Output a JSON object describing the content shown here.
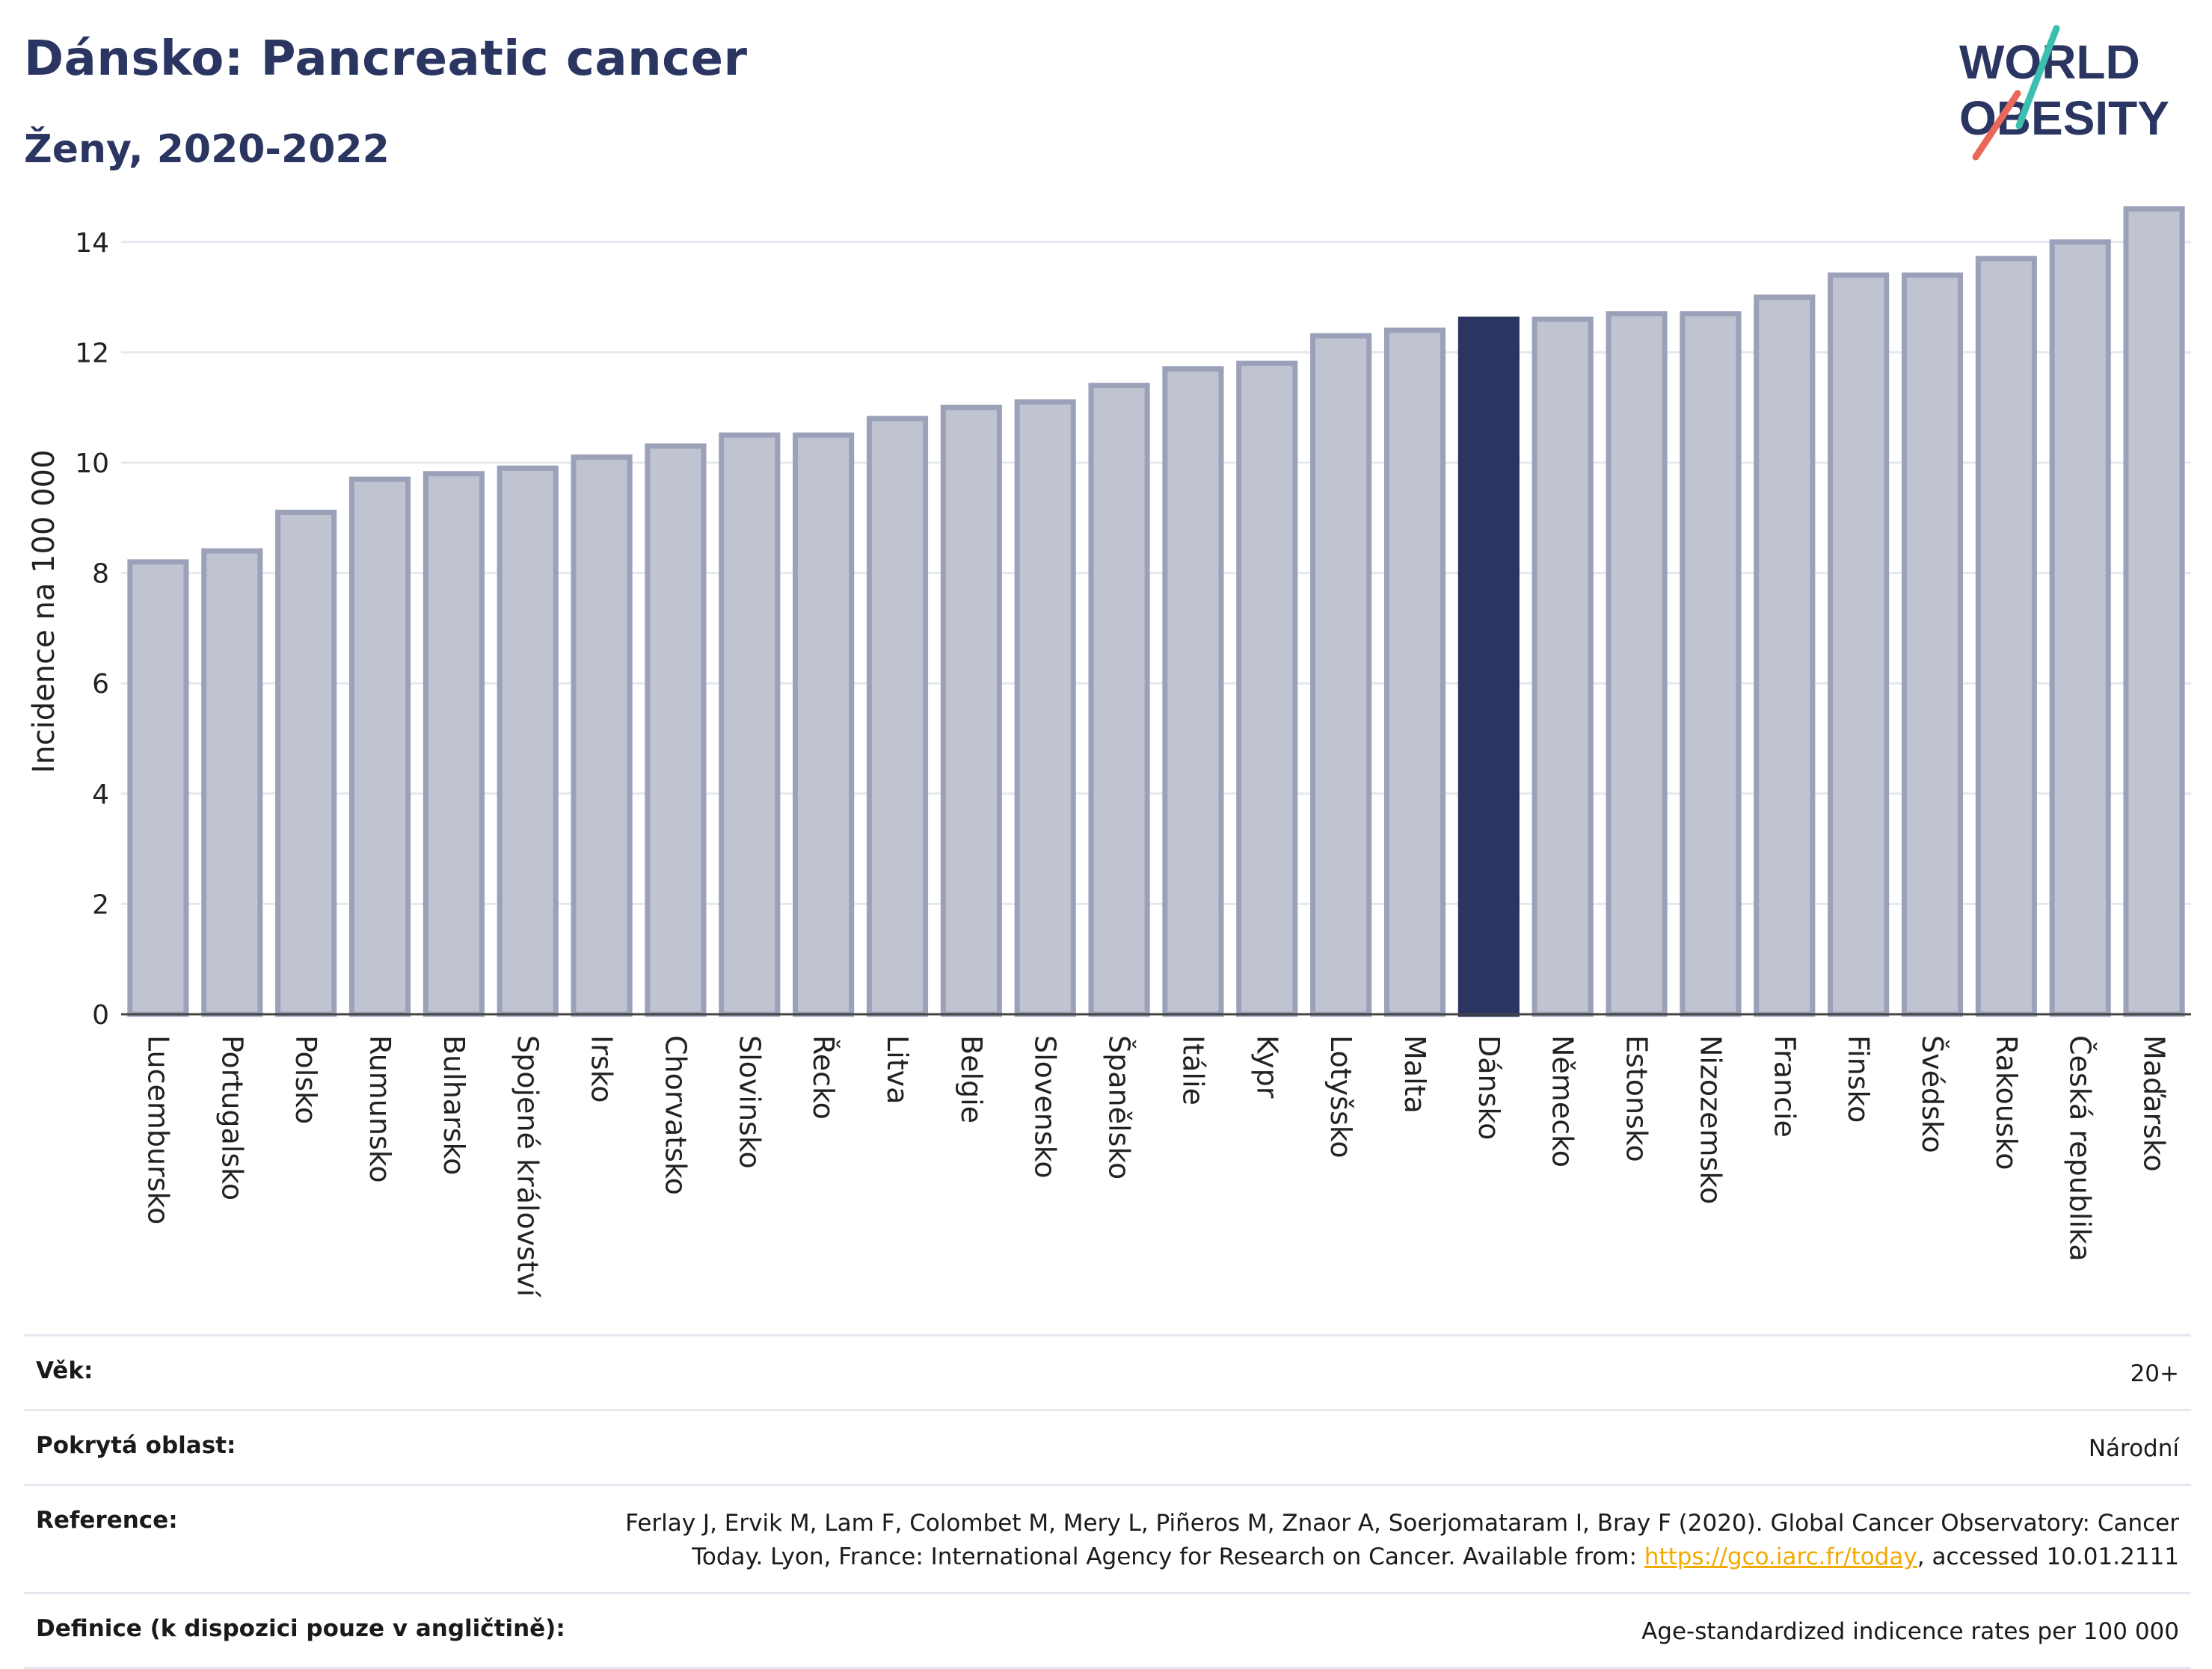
{
  "header": {
    "title": "Dánsko: Pancreatic cancer",
    "subtitle": "Ženy, 2020-2022"
  },
  "logo": {
    "line1": "WORLD",
    "line2": "OBESITY"
  },
  "colors": {
    "bar": "#c0c4d1",
    "bar_border": "#9aa1b8",
    "highlight": "#2a3561",
    "grid": "#e6e8ef",
    "title": "#2a3561"
  },
  "chart_data": {
    "type": "bar",
    "title": "",
    "ylabel": "Incidence na 100 000",
    "xlabel": "",
    "ylim": [
      0,
      15
    ],
    "yticks": [
      0,
      2,
      4,
      6,
      8,
      10,
      12,
      14
    ],
    "highlight": "Dánsko",
    "grid": true,
    "categories": [
      "Lucembursko",
      "Portugalsko",
      "Polsko",
      "Rumunsko",
      "Bulharsko",
      "Spojené království",
      "Irsko",
      "Chorvatsko",
      "Slovinsko",
      "Řecko",
      "Litva",
      "Belgie",
      "Slovensko",
      "Španělsko",
      "Itálie",
      "Kypr",
      "Lotyšsko",
      "Malta",
      "Dánsko",
      "Německo",
      "Estonsko",
      "Nizozemsko",
      "Francie",
      "Finsko",
      "Švédsko",
      "Rakousko",
      "Česká republika",
      "Maďarsko"
    ],
    "values": [
      8.2,
      8.4,
      9.1,
      9.7,
      9.8,
      9.9,
      10.1,
      10.3,
      10.5,
      10.5,
      10.8,
      11.0,
      11.1,
      11.4,
      11.7,
      11.8,
      12.3,
      12.4,
      12.6,
      12.6,
      12.7,
      12.7,
      13.0,
      13.4,
      13.4,
      13.7,
      14.0,
      14.6
    ]
  },
  "meta": {
    "age_label": "Věk:",
    "age_value": "20+",
    "area_label": "Pokrytá oblast:",
    "area_value": "Národní",
    "reference_label": "Reference:",
    "reference_text": "Ferlay J, Ervik M, Lam F, Colombet M, Mery L, Piñeros M, Znaor A, Soerjomataram I, Bray F (2020). Global Cancer Observatory: Cancer Today. Lyon, France: International Agency for Research on Cancer. Available from: ",
    "reference_link": "https://gco.iarc.fr/today",
    "reference_suffix": ", accessed 10.01.2111",
    "definition_label": "Definice (k dispozici pouze v angličtině):",
    "definition_value": "Age-standardized indicence rates per 100 000"
  }
}
